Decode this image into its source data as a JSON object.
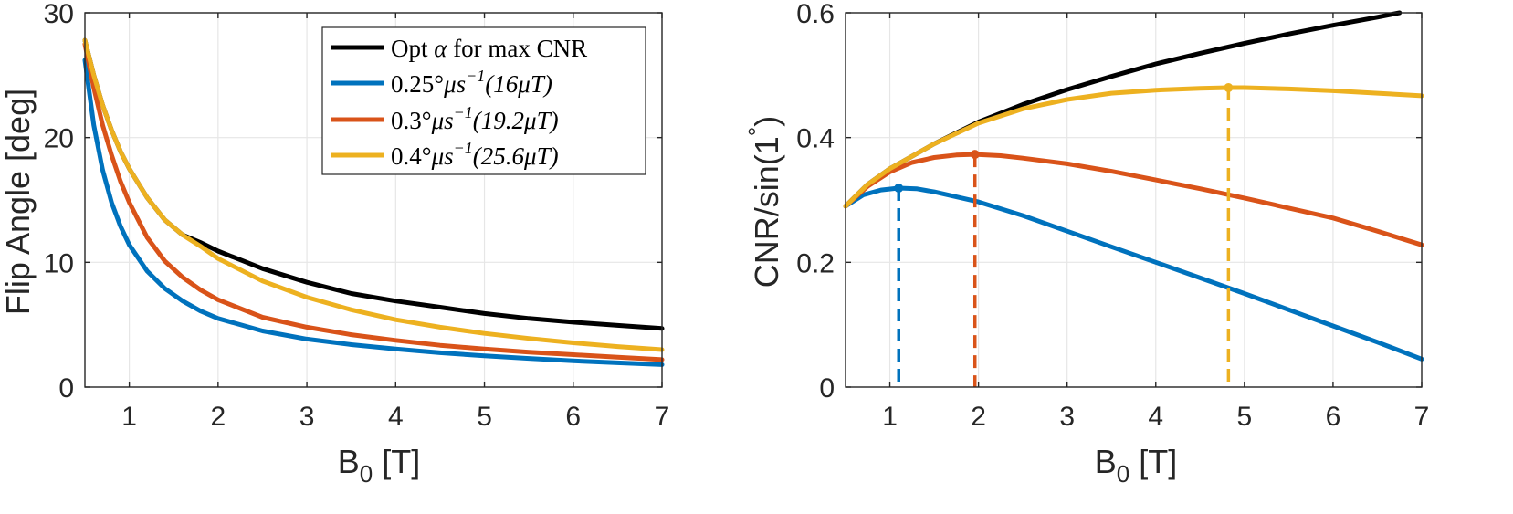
{
  "colors": {
    "black": "#000000",
    "blue": "#0072BD",
    "red": "#D95319",
    "yellow": "#EDB120",
    "grid": "#e6e6e6",
    "axis": "#262626"
  },
  "legend": {
    "entries": [
      {
        "series": "opt",
        "pre": "Opt ",
        "greek": "α",
        "post": " for max CNR",
        "sup": "",
        "tail": ""
      },
      {
        "series": "s025",
        "pre": "0.25°",
        "greek": "μs",
        "post": "",
        "sup": "−1",
        "tail": "(16μT)"
      },
      {
        "series": "s03",
        "pre": "0.3°",
        "greek": "μs",
        "post": "",
        "sup": "−1",
        "tail": "(19.2μT)"
      },
      {
        "series": "s04",
        "pre": "0.4°",
        "greek": "μs",
        "post": "",
        "sup": "−1",
        "tail": "(25.6μT)"
      }
    ]
  },
  "chart_data": [
    {
      "type": "line",
      "title": "",
      "xlabel": {
        "main": "B",
        "sub": "0",
        "rest": " [T]"
      },
      "ylabel": "Flip Angle [deg]",
      "xlim": [
        0.5,
        7
      ],
      "ylim": [
        0,
        30
      ],
      "xticks": [
        1,
        2,
        3,
        4,
        5,
        6,
        7
      ],
      "yticks": [
        0,
        10,
        20,
        30
      ],
      "grid": true,
      "legend": "top-right",
      "series": [
        {
          "key": "opt",
          "color": "#000000",
          "x": [
            0.5,
            0.6,
            0.7,
            0.8,
            0.9,
            1.0,
            1.2,
            1.4,
            1.6,
            1.8,
            2.0,
            2.5,
            3.0,
            3.5,
            4.0,
            4.5,
            5.0,
            5.5,
            6.0,
            6.5,
            7.0
          ],
          "y": [
            27.8,
            25.0,
            22.6,
            20.6,
            18.9,
            17.5,
            15.2,
            13.4,
            12.2,
            11.6,
            10.9,
            9.5,
            8.4,
            7.5,
            6.9,
            6.4,
            5.9,
            5.5,
            5.2,
            4.95,
            4.7
          ]
        },
        {
          "key": "s025",
          "color": "#0072BD",
          "x": [
            0.5,
            0.6,
            0.7,
            0.8,
            0.9,
            1.0,
            1.2,
            1.4,
            1.6,
            1.8,
            2.0,
            2.5,
            3.0,
            3.5,
            4.0,
            4.5,
            5.0,
            5.5,
            6.0,
            6.5,
            7.0
          ],
          "y": [
            26.2,
            21.0,
            17.4,
            14.8,
            12.9,
            11.4,
            9.3,
            7.9,
            6.9,
            6.1,
            5.5,
            4.5,
            3.85,
            3.4,
            3.05,
            2.75,
            2.5,
            2.3,
            2.1,
            1.95,
            1.8
          ]
        },
        {
          "key": "s03",
          "color": "#D95319",
          "x": [
            0.5,
            0.6,
            0.7,
            0.8,
            0.9,
            1.0,
            1.2,
            1.4,
            1.6,
            1.8,
            2.0,
            2.5,
            3.0,
            3.5,
            4.0,
            4.5,
            5.0,
            5.5,
            6.0,
            6.5,
            7.0
          ],
          "y": [
            27.5,
            24.0,
            21.0,
            18.6,
            16.5,
            14.8,
            12.0,
            10.1,
            8.8,
            7.8,
            7.0,
            5.6,
            4.8,
            4.2,
            3.75,
            3.35,
            3.05,
            2.8,
            2.6,
            2.4,
            2.2
          ]
        },
        {
          "key": "s04",
          "color": "#EDB120",
          "x": [
            0.5,
            0.6,
            0.7,
            0.8,
            0.9,
            1.0,
            1.2,
            1.4,
            1.6,
            1.8,
            2.0,
            2.5,
            3.0,
            3.5,
            4.0,
            4.5,
            5.0,
            5.5,
            6.0,
            6.5,
            7.0
          ],
          "y": [
            27.8,
            25.0,
            22.6,
            20.6,
            18.9,
            17.5,
            15.2,
            13.4,
            12.2,
            11.3,
            10.3,
            8.5,
            7.2,
            6.2,
            5.4,
            4.8,
            4.3,
            3.9,
            3.55,
            3.25,
            3.0
          ]
        }
      ]
    },
    {
      "type": "line",
      "title": "",
      "xlabel": {
        "main": "B",
        "sub": "0",
        "rest": " [T]"
      },
      "ylabel": {
        "main": "CNR/sin(1",
        "sup": "°",
        "rest": ")"
      },
      "xlim": [
        0.5,
        7
      ],
      "ylim": [
        0,
        0.6
      ],
      "xticks": [
        1,
        2,
        3,
        4,
        5,
        6,
        7
      ],
      "yticks": [
        0,
        0.2,
        0.4,
        0.6
      ],
      "grid": true,
      "series": [
        {
          "key": "opt",
          "color": "#000000",
          "x": [
            0.5,
            0.75,
            1.0,
            1.25,
            1.5,
            2.0,
            2.5,
            3.0,
            3.5,
            4.0,
            4.5,
            5.0,
            5.5,
            6.0,
            6.5,
            6.75
          ],
          "y": [
            0.29,
            0.325,
            0.35,
            0.37,
            0.39,
            0.425,
            0.453,
            0.477,
            0.498,
            0.518,
            0.535,
            0.551,
            0.566,
            0.58,
            0.593,
            0.6
          ]
        },
        {
          "key": "s025",
          "color": "#0072BD",
          "x": [
            0.5,
            0.7,
            0.9,
            1.1,
            1.3,
            1.5,
            2.0,
            2.5,
            3.0,
            3.5,
            4.0,
            4.5,
            5.0,
            5.5,
            6.0,
            6.5,
            7.0
          ],
          "y": [
            0.29,
            0.308,
            0.316,
            0.319,
            0.318,
            0.313,
            0.297,
            0.275,
            0.25,
            0.225,
            0.2,
            0.175,
            0.15,
            0.124,
            0.098,
            0.072,
            0.045
          ]
        },
        {
          "key": "s03",
          "color": "#D95319",
          "x": [
            0.5,
            0.75,
            1.0,
            1.25,
            1.5,
            1.75,
            1.96,
            2.25,
            2.5,
            3.0,
            3.5,
            4.0,
            4.5,
            5.0,
            5.5,
            6.0,
            6.5,
            7.0
          ],
          "y": [
            0.29,
            0.322,
            0.345,
            0.36,
            0.368,
            0.372,
            0.373,
            0.371,
            0.367,
            0.358,
            0.346,
            0.332,
            0.318,
            0.303,
            0.287,
            0.271,
            0.25,
            0.228
          ]
        },
        {
          "key": "s04",
          "color": "#EDB120",
          "x": [
            0.5,
            0.75,
            1.0,
            1.25,
            1.5,
            2.0,
            2.5,
            3.0,
            3.5,
            4.0,
            4.5,
            4.82,
            5.0,
            5.5,
            6.0,
            6.5,
            7.0
          ],
          "y": [
            0.29,
            0.325,
            0.35,
            0.37,
            0.39,
            0.423,
            0.446,
            0.461,
            0.471,
            0.476,
            0.479,
            0.48,
            0.48,
            0.478,
            0.475,
            0.471,
            0.467
          ]
        }
      ],
      "peaks": [
        {
          "key": "s025",
          "color": "#0072BD",
          "x": 1.1,
          "y": 0.319
        },
        {
          "key": "s03",
          "color": "#D95319",
          "x": 1.96,
          "y": 0.373
        },
        {
          "key": "s04",
          "color": "#EDB120",
          "x": 4.82,
          "y": 0.48
        }
      ]
    }
  ]
}
